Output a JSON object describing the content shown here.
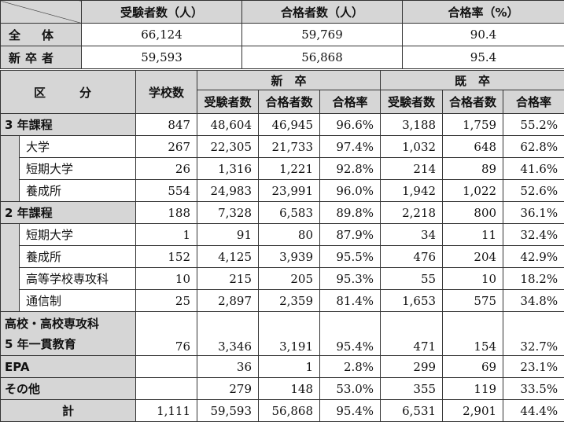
{
  "summary": {
    "headers": [
      "受験者数（人）",
      "合格者数（人）",
      "合格率（%）"
    ],
    "rows": [
      {
        "label": "全　体",
        "values": [
          "66,124",
          "59,769",
          "90.4"
        ]
      },
      {
        "label": "新卒者",
        "values": [
          "59,593",
          "56,868",
          "95.4"
        ]
      }
    ]
  },
  "detail": {
    "col_kubun": "区　分",
    "col_schools": "学校数",
    "group_new": "新　卒",
    "group_old": "既　卒",
    "sub_headers": [
      "受験者数",
      "合格者数",
      "合格率",
      "受験者数",
      "合格者数",
      "合格率"
    ],
    "rows": [
      {
        "label": "3 年課程",
        "values": [
          "847",
          "48,604",
          "46,945",
          "96.6%",
          "3,188",
          "1,759",
          "55.2%"
        ]
      },
      {
        "label": "大学",
        "values": [
          "267",
          "22,305",
          "21,733",
          "97.4%",
          "1,032",
          "648",
          "62.8%"
        ]
      },
      {
        "label": "短期大学",
        "values": [
          "26",
          "1,316",
          "1,221",
          "92.8%",
          "214",
          "89",
          "41.6%"
        ]
      },
      {
        "label": "養成所",
        "values": [
          "554",
          "24,983",
          "23,991",
          "96.0%",
          "1,942",
          "1,022",
          "52.6%"
        ]
      },
      {
        "label": "2 年課程",
        "values": [
          "188",
          "7,328",
          "6,583",
          "89.8%",
          "2,218",
          "800",
          "36.1%"
        ]
      },
      {
        "label": "短期大学",
        "values": [
          "1",
          "91",
          "80",
          "87.9%",
          "34",
          "11",
          "32.4%"
        ]
      },
      {
        "label": "養成所",
        "values": [
          "152",
          "4,125",
          "3,939",
          "95.5%",
          "476",
          "204",
          "42.9%"
        ]
      },
      {
        "label": "高等学校専攻科",
        "values": [
          "10",
          "215",
          "205",
          "95.3%",
          "55",
          "10",
          "18.2%"
        ]
      },
      {
        "label": "通信制",
        "values": [
          "25",
          "2,897",
          "2,359",
          "81.4%",
          "1,653",
          "575",
          "34.8%"
        ]
      },
      {
        "label_line1": "高校・高校専攻科",
        "label_line2": "5 年一貫教育",
        "values": [
          "76",
          "3,346",
          "3,191",
          "95.4%",
          "471",
          "154",
          "32.7%"
        ]
      },
      {
        "label": "EPA",
        "values": [
          "",
          "36",
          "1",
          "2.8%",
          "299",
          "69",
          "23.1%"
        ]
      },
      {
        "label": "その他",
        "values": [
          "",
          "279",
          "148",
          "53.0%",
          "355",
          "119",
          "33.5%"
        ]
      },
      {
        "label": "計",
        "values": [
          "1,111",
          "59,593",
          "56,868",
          "95.4%",
          "6,531",
          "2,901",
          "44.4%"
        ]
      }
    ]
  }
}
